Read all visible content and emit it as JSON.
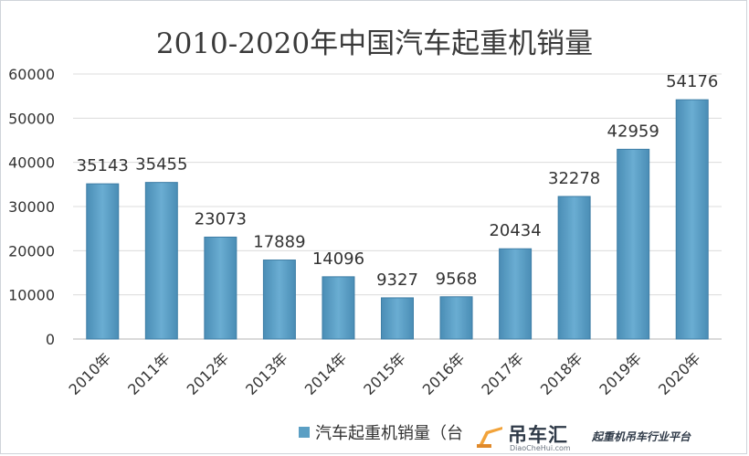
{
  "chart_data": {
    "type": "bar",
    "title": "2010-2020年中国汽车起重机销量",
    "categories": [
      "2010年",
      "2011年",
      "2012年",
      "2013年",
      "2014年",
      "2015年",
      "2016年",
      "2017年",
      "2018年",
      "2019年",
      "2020年"
    ],
    "series": [
      {
        "name": "汽车起重机销量（台）",
        "values": [
          35143,
          35455,
          23073,
          17889,
          14096,
          9327,
          9568,
          20434,
          32278,
          42959,
          54176
        ]
      }
    ],
    "y_ticks": [
      "0",
      "10000",
      "20000",
      "30000",
      "40000",
      "50000",
      "60000"
    ],
    "ylim": [
      0,
      60000
    ],
    "grid": true,
    "legend": "bottom",
    "bar_color": "#5b9fc4",
    "legend_visible_text": "汽车起重机销量（台"
  },
  "watermark": {
    "brand": "吊车汇",
    "url": "DiaoCheHui.com",
    "slogan": "起重机吊车行业平台"
  }
}
